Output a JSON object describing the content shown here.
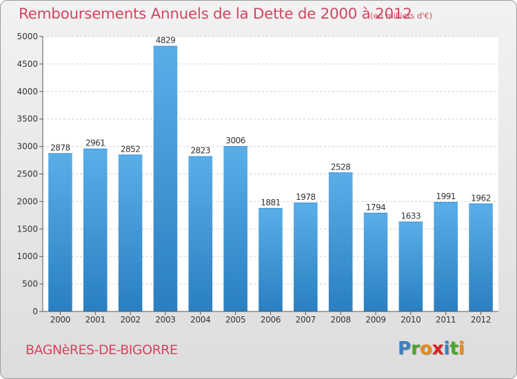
{
  "header": {
    "title": "Remboursements Annuels de la Dette de 2000 à 2012",
    "subtitle": "(en milliers d'€)"
  },
  "footer": {
    "commune": "BAGNèRES-DE-BIGORRE",
    "logo_letters": [
      {
        "char": "P",
        "color": "#3a7fc4"
      },
      {
        "char": "r",
        "color": "#4aa52e"
      },
      {
        "char": "o",
        "color": "#e58c1a"
      },
      {
        "char": "x",
        "color": "#e02020"
      },
      {
        "char": "i",
        "color": "#3a7fc4"
      },
      {
        "char": "t",
        "color": "#4aa52e"
      },
      {
        "char": "i",
        "color": "#e58c1a"
      }
    ]
  },
  "chart_data": {
    "type": "bar",
    "categories": [
      "2000",
      "2001",
      "2002",
      "2003",
      "2004",
      "2005",
      "2006",
      "2007",
      "2008",
      "2009",
      "2010",
      "2011",
      "2012"
    ],
    "values": [
      2878,
      2961,
      2852,
      4829,
      2823,
      3006,
      1881,
      1978,
      2528,
      1794,
      1633,
      1991,
      1962
    ],
    "ylim": [
      0,
      5000
    ],
    "yticks": [
      0,
      500,
      1000,
      1500,
      2000,
      2500,
      3000,
      3500,
      4000,
      4500,
      5000
    ],
    "grid": true,
    "bar_color_top": "#5aaee8",
    "bar_color_bottom": "#2a7fc0",
    "plot_background": "#ffffff",
    "text_color": "#333333"
  }
}
